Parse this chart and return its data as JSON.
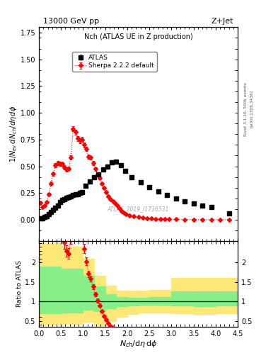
{
  "title_top": "13000 GeV pp",
  "title_right": "Z+Jet",
  "plot_title": "Nch (ATLAS UE in Z production)",
  "xlabel": "$N_{ch}/d\\eta\\, d\\phi$",
  "ylabel_main": "$1/N_{ev}\\, dN_{ch}/d\\eta\\, d\\phi$",
  "ylabel_ratio": "Ratio to ATLAS",
  "watermark": "ATLAS_2019_I1736531",
  "right_label1": "Rivet 3.1.10, 500k events",
  "right_label2": "[arXiv:1306.3436]",
  "atlas_x": [
    0.025,
    0.075,
    0.125,
    0.175,
    0.225,
    0.275,
    0.325,
    0.375,
    0.425,
    0.475,
    0.525,
    0.575,
    0.625,
    0.675,
    0.725,
    0.775,
    0.825,
    0.875,
    0.925,
    0.975,
    1.05,
    1.15,
    1.25,
    1.35,
    1.45,
    1.55,
    1.65,
    1.75,
    1.85,
    1.95,
    2.1,
    2.3,
    2.5,
    2.7,
    2.9,
    3.1,
    3.3,
    3.5,
    3.7,
    3.9,
    4.3
  ],
  "atlas_y": [
    0.01,
    0.015,
    0.025,
    0.035,
    0.05,
    0.07,
    0.09,
    0.115,
    0.135,
    0.165,
    0.185,
    0.195,
    0.205,
    0.215,
    0.22,
    0.23,
    0.235,
    0.24,
    0.25,
    0.26,
    0.315,
    0.355,
    0.395,
    0.425,
    0.47,
    0.5,
    0.535,
    0.545,
    0.51,
    0.455,
    0.395,
    0.35,
    0.305,
    0.265,
    0.23,
    0.2,
    0.175,
    0.155,
    0.135,
    0.12,
    0.06
  ],
  "atlas_yerr": [
    0.002,
    0.002,
    0.003,
    0.004,
    0.005,
    0.006,
    0.007,
    0.008,
    0.009,
    0.01,
    0.01,
    0.01,
    0.01,
    0.01,
    0.01,
    0.01,
    0.01,
    0.01,
    0.011,
    0.011,
    0.012,
    0.013,
    0.013,
    0.014,
    0.015,
    0.015,
    0.016,
    0.016,
    0.015,
    0.014,
    0.012,
    0.011,
    0.01,
    0.009,
    0.008,
    0.007,
    0.006,
    0.006,
    0.005,
    0.004,
    0.003
  ],
  "sherpa_x": [
    0.025,
    0.075,
    0.125,
    0.175,
    0.225,
    0.275,
    0.325,
    0.375,
    0.425,
    0.475,
    0.525,
    0.575,
    0.625,
    0.675,
    0.725,
    0.775,
    0.825,
    0.875,
    0.925,
    0.975,
    1.025,
    1.075,
    1.125,
    1.175,
    1.225,
    1.275,
    1.325,
    1.375,
    1.425,
    1.475,
    1.525,
    1.575,
    1.625,
    1.675,
    1.725,
    1.775,
    1.825,
    1.875,
    1.925,
    1.975,
    2.05,
    2.15,
    2.25,
    2.35,
    2.45,
    2.55,
    2.65,
    2.75,
    2.85,
    2.95,
    3.1,
    3.3,
    3.5,
    3.7,
    3.9,
    4.1,
    4.3
  ],
  "sherpa_y": [
    0.16,
    0.12,
    0.13,
    0.165,
    0.24,
    0.34,
    0.43,
    0.51,
    0.53,
    0.525,
    0.52,
    0.49,
    0.47,
    0.48,
    0.58,
    0.85,
    0.82,
    0.76,
    0.74,
    0.75,
    0.7,
    0.66,
    0.59,
    0.58,
    0.53,
    0.475,
    0.425,
    0.39,
    0.34,
    0.3,
    0.26,
    0.22,
    0.195,
    0.175,
    0.155,
    0.13,
    0.105,
    0.08,
    0.065,
    0.055,
    0.04,
    0.03,
    0.025,
    0.02,
    0.015,
    0.012,
    0.009,
    0.007,
    0.005,
    0.004,
    0.003,
    0.002,
    0.001,
    0.001,
    0.001,
    0.001,
    0.001
  ],
  "sherpa_yerr": [
    0.01,
    0.008,
    0.008,
    0.01,
    0.012,
    0.015,
    0.017,
    0.018,
    0.019,
    0.019,
    0.019,
    0.018,
    0.018,
    0.018,
    0.02,
    0.025,
    0.024,
    0.022,
    0.022,
    0.022,
    0.021,
    0.02,
    0.019,
    0.019,
    0.018,
    0.017,
    0.016,
    0.015,
    0.014,
    0.013,
    0.012,
    0.011,
    0.01,
    0.009,
    0.008,
    0.007,
    0.006,
    0.006,
    0.005,
    0.005,
    0.004,
    0.003,
    0.003,
    0.002,
    0.002,
    0.002,
    0.001,
    0.001,
    0.001,
    0.001,
    0.001,
    0.001,
    0.001,
    0.001,
    0.001,
    0.001,
    0.001
  ],
  "ylim_main": [
    -0.2,
    1.8
  ],
  "ylim_ratio": [
    0.35,
    2.55
  ],
  "xlim": [
    0.0,
    4.5
  ],
  "atlas_color": "black",
  "sherpa_color": "red",
  "background_color": "white",
  "ratio_band_edges": [
    0.0,
    0.25,
    0.5,
    0.75,
    1.0,
    1.25,
    1.5,
    1.75,
    2.0,
    2.25,
    2.5,
    3.0,
    3.5,
    4.0,
    4.5
  ],
  "yellow_lo": [
    0.4,
    0.4,
    0.42,
    0.42,
    0.48,
    0.38,
    0.5,
    0.6,
    0.68,
    0.72,
    0.72,
    0.7,
    0.68,
    0.7
  ],
  "yellow_hi": [
    2.5,
    2.5,
    2.4,
    2.4,
    2.1,
    1.65,
    1.4,
    1.28,
    1.28,
    1.28,
    1.3,
    1.6,
    1.6,
    1.6
  ],
  "green_lo": [
    0.7,
    0.7,
    0.72,
    0.72,
    0.78,
    0.75,
    0.82,
    0.88,
    0.9,
    0.92,
    0.92,
    0.9,
    0.88,
    0.9
  ],
  "green_hi": [
    1.9,
    1.9,
    1.85,
    1.85,
    1.65,
    1.38,
    1.18,
    1.12,
    1.1,
    1.1,
    1.12,
    1.25,
    1.25,
    1.25
  ]
}
